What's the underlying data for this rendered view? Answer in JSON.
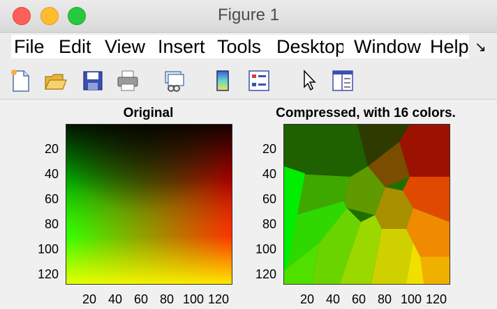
{
  "window": {
    "title": "Figure 1"
  },
  "menubar": {
    "items": [
      {
        "name": "file",
        "label": "File"
      },
      {
        "name": "edit",
        "label": "Edit"
      },
      {
        "name": "view",
        "label": "View"
      },
      {
        "name": "insert",
        "label": "Insert"
      },
      {
        "name": "tools",
        "label": "Tools"
      },
      {
        "name": "desktop",
        "label": "Desktop"
      },
      {
        "name": "window",
        "label": "Window"
      },
      {
        "name": "help",
        "label": "Help"
      }
    ],
    "overflow": "↘"
  },
  "toolbar": {
    "icons": [
      "new-figure-icon",
      "open-file-icon",
      "save-icon",
      "print-icon",
      "link-plot-icon",
      "colorbar-icon",
      "legend-icon",
      "edit-plot-icon",
      "property-inspector-icon"
    ]
  },
  "axes": [
    {
      "title": "Original",
      "yticks": [
        "20",
        "40",
        "60",
        "80",
        "100",
        "120"
      ],
      "xticks": [
        "20",
        "40",
        "60",
        "80",
        "100",
        "120"
      ]
    },
    {
      "title": "Compressed, with 16 colors.",
      "yticks": [
        "20",
        "40",
        "60",
        "80",
        "100",
        "120"
      ],
      "xticks": [
        "20",
        "40",
        "60",
        "80",
        "100",
        "120"
      ]
    }
  ]
}
